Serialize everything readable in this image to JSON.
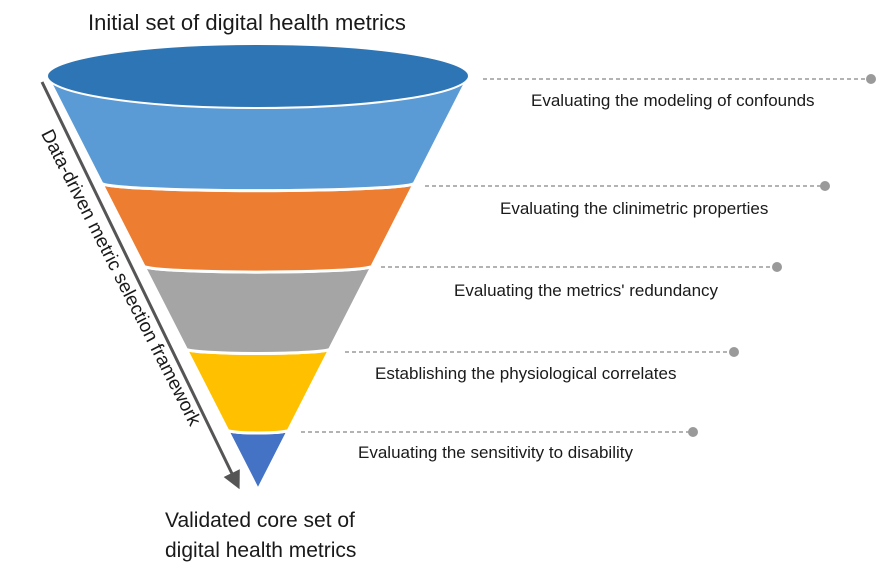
{
  "title_top": "Initial set of digital health metrics",
  "title_bottom": "Validated core set of\ndigital health metrics",
  "side_label": "Data-driven metric selection framework",
  "stages": [
    {
      "label": "Evaluating the modeling of confounds",
      "color": "#5b9bd5"
    },
    {
      "label": "Evaluating the clinimetric properties",
      "color": "#ed7d31"
    },
    {
      "label": "Evaluating the metrics' redundancy",
      "color": "#a5a5a5"
    },
    {
      "label": "Establishing the physiological correlates",
      "color": "#ffc000"
    },
    {
      "label": "Evaluating the sensitivity to disability",
      "color": "#4472c4"
    }
  ],
  "top_ellipse_color": "#2e75b6",
  "leader_color": "#9a9a9a",
  "arrow_color": "#555555"
}
